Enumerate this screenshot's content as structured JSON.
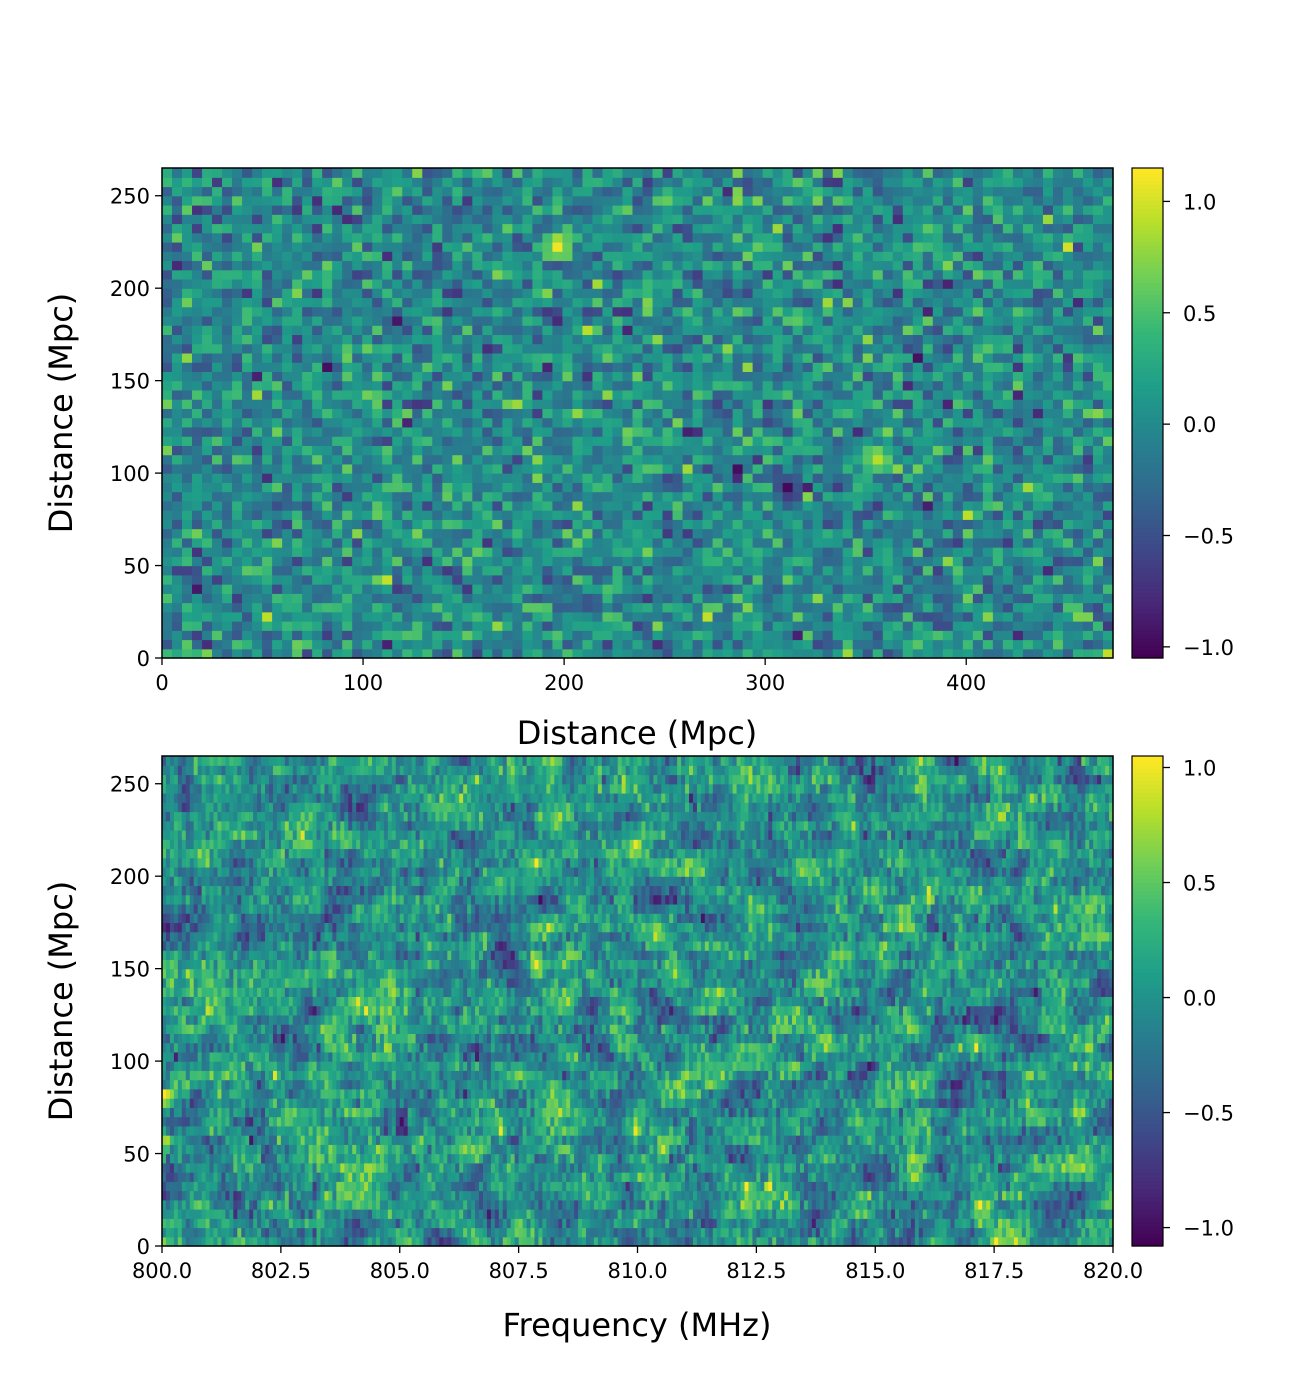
{
  "chart_data": [
    {
      "type": "heatmap",
      "name": "top-panel",
      "xlabel": "Distance (Mpc)",
      "ylabel": "Distance (Mpc)",
      "xlim": [
        0,
        473
      ],
      "ylim": [
        0,
        265
      ],
      "xticks": [
        0,
        100,
        200,
        300,
        400
      ],
      "xtick_labels": [
        "0",
        "100",
        "200",
        "300",
        "400"
      ],
      "yticks": [
        0,
        50,
        100,
        150,
        200,
        250
      ],
      "ytick_labels": [
        "0",
        "50",
        "100",
        "150",
        "200",
        "250"
      ],
      "grid": [
        95,
        53
      ],
      "colormap": "viridis",
      "vmin": -1.05,
      "vmax": 1.15,
      "colorbar_ticks": [
        1.0,
        0.5,
        0.0,
        -0.5,
        -1.0
      ],
      "colorbar_tick_labels": [
        "1.0",
        "0.5",
        "0.0",
        "−0.5",
        "−1.0"
      ],
      "seed": 7,
      "features": [
        {
          "x": 309,
          "y": 90,
          "value": -1.0
        },
        {
          "x": 198,
          "y": 224,
          "value": 1.1
        },
        {
          "x": 354,
          "y": 106,
          "value": 0.9
        }
      ]
    },
    {
      "type": "heatmap",
      "name": "bottom-panel",
      "xlabel": "Frequency (MHz)",
      "ylabel": "Distance (Mpc)",
      "xlim": [
        800.0,
        820.0
      ],
      "ylim": [
        0,
        265
      ],
      "xticks": [
        800.0,
        802.5,
        805.0,
        807.5,
        810.0,
        812.5,
        815.0,
        817.5,
        820.0
      ],
      "xtick_labels": [
        "800.0",
        "802.5",
        "805.0",
        "807.5",
        "810.0",
        "812.5",
        "815.0",
        "817.5",
        "820.0"
      ],
      "yticks": [
        0,
        50,
        100,
        150,
        200,
        250
      ],
      "ytick_labels": [
        "0",
        "50",
        "100",
        "150",
        "200",
        "250"
      ],
      "grid": [
        240,
        53
      ],
      "colormap": "viridis",
      "vmin": -1.08,
      "vmax": 1.05,
      "colorbar_ticks": [
        1.0,
        0.5,
        0.0,
        -0.5,
        -1.0
      ],
      "colorbar_tick_labels": [
        "1.0",
        "0.5",
        "0.0",
        "−0.5",
        "−1.0"
      ],
      "seed": 11,
      "features": [
        {
          "x": 807.9,
          "y": 150,
          "value": 1.0
        },
        {
          "x": 805.0,
          "y": 67,
          "value": -1.0
        },
        {
          "x": 810.5,
          "y": 52,
          "value": 0.9
        }
      ]
    }
  ]
}
